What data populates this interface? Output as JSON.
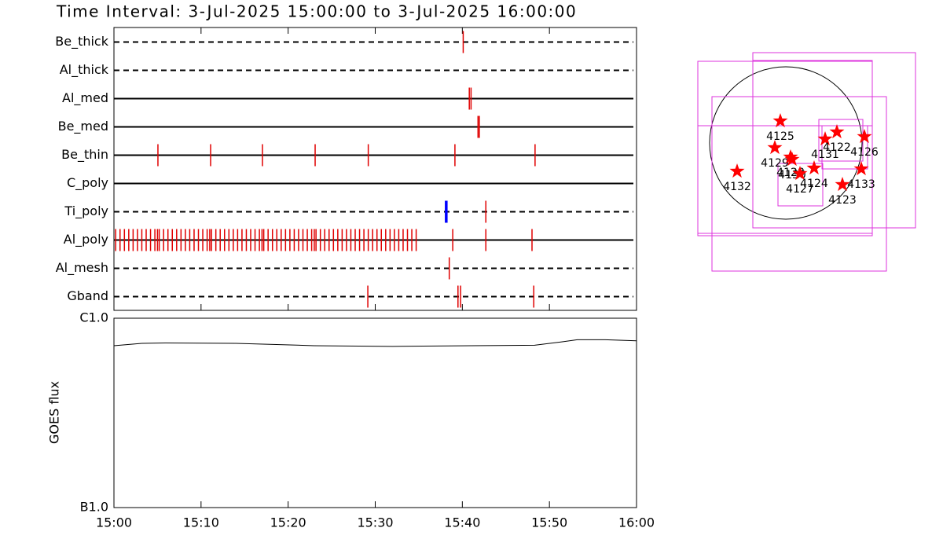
{
  "chart_data": [
    {
      "type": "events",
      "title": "Time Interval:  3-Jul-2025 15:00:00 to  3-Jul-2025 16:00:00",
      "xlim": [
        900,
        960
      ],
      "xticks": [
        {
          "value": 900,
          "label": "15:00"
        },
        {
          "value": 910,
          "label": "15:10"
        },
        {
          "value": 920,
          "label": "15:20"
        },
        {
          "value": 930,
          "label": "15:30"
        },
        {
          "value": 940,
          "label": "15:40"
        },
        {
          "value": 950,
          "label": "15:50"
        },
        {
          "value": 960,
          "label": "16:00"
        }
      ],
      "color": "#e00000",
      "channels": [
        {
          "name": "Be_thick",
          "line": "dashed",
          "times": [
            940.1
          ]
        },
        {
          "name": "Al_thick",
          "line": "dashed",
          "times": []
        },
        {
          "name": "Al_med",
          "line": "solid",
          "times": [
            940.8,
            941.0
          ]
        },
        {
          "name": "Be_med",
          "line": "solid",
          "times": [
            941.8,
            941.95
          ]
        },
        {
          "name": "Be_thin",
          "line": "solid",
          "times": [
            905.05,
            911.1,
            917.05,
            923.1,
            929.2,
            939.15,
            948.35
          ]
        },
        {
          "name": "C_poly",
          "line": "solid",
          "times": []
        },
        {
          "name": "Ti_poly",
          "line": "dashed",
          "times": [
            938.15,
            942.7
          ],
          "colors": [
            "#0000ff",
            "#e00000"
          ]
        },
        {
          "name": "Al_poly",
          "line": "solid",
          "times": [
            900.2,
            900.7,
            901.2,
            901.7,
            902.2,
            902.7,
            903.2,
            903.7,
            904.2,
            904.7,
            905.2,
            905.7,
            906.2,
            906.7,
            907.2,
            907.7,
            908.2,
            908.7,
            909.2,
            909.7,
            910.2,
            910.7,
            911.2,
            911.7,
            912.2,
            912.7,
            913.2,
            913.7,
            914.2,
            914.7,
            915.2,
            915.7,
            916.2,
            916.7,
            917.2,
            917.7,
            918.2,
            918.7,
            919.2,
            919.7,
            920.2,
            920.7,
            921.2,
            921.7,
            922.2,
            922.7,
            923.2,
            923.7,
            924.2,
            924.7,
            925.2,
            925.7,
            926.2,
            926.7,
            927.2,
            927.7,
            928.2,
            928.7,
            929.2,
            929.7,
            930.2,
            930.7,
            931.2,
            931.7,
            932.2,
            932.7,
            933.2,
            933.7,
            934.2,
            934.7,
            905.0,
            911.0,
            917.0,
            923.0,
            938.9,
            942.7,
            948.0
          ]
        },
        {
          "name": "Al_mesh",
          "line": "dashed",
          "times": [
            938.5
          ]
        },
        {
          "name": "Gband",
          "line": "dashed",
          "times": [
            929.15,
            939.5,
            939.8,
            948.2
          ]
        }
      ]
    },
    {
      "type": "line",
      "y_label": "GOES flux",
      "log_scale": true,
      "xlim": [
        900,
        960
      ],
      "ylim": [
        1e-06,
        1e-05
      ],
      "yticks": [
        {
          "value": 1e-06,
          "label": "B1.0"
        },
        {
          "value": 1e-05,
          "label": "C1.0"
        }
      ],
      "x": [
        900,
        903.2,
        905.9,
        914.0,
        923.0,
        932.0,
        941.0,
        948.3,
        951.4,
        953.2,
        956.4,
        960
      ],
      "values": [
        7.16e-06,
        7.37e-06,
        7.4e-06,
        7.37e-06,
        7.16e-06,
        7.1e-06,
        7.16e-06,
        7.2e-06,
        7.5e-06,
        7.7e-06,
        7.7e-06,
        7.6e-06
      ],
      "color": "#000000"
    },
    {
      "type": "map",
      "xlim": [
        -1200,
        1700
      ],
      "ylim": [
        -1700,
        1200
      ],
      "box_color": "#dd33dd",
      "star_color": "#ff0000",
      "boxes": [
        {
          "x": [
            -1120,
            1100
          ],
          "y": [
            1040,
            -1180
          ]
        },
        {
          "x": [
            -420,
            1650
          ],
          "y": [
            1150,
            -1080
          ]
        },
        {
          "x": [
            -940,
            1280
          ],
          "y": [
            590,
            -1630
          ]
        },
        {
          "x": [
            -420,
            1100
          ],
          "y": [
            1050,
            -1080
          ]
        },
        {
          "x": [
            -1120,
            1100
          ],
          "y": [
            220,
            -1150
          ]
        },
        {
          "x": [
            420,
            980
          ],
          "y": [
            300,
            -230
          ]
        },
        {
          "x": [
            460,
            1040
          ],
          "y": [
            220,
            -330
          ]
        },
        {
          "x": [
            -100,
            470
          ],
          "y": [
            -260,
            -800
          ]
        }
      ],
      "points": [
        {
          "label": "4125",
          "x": -70,
          "y": 280
        },
        {
          "label": "4129",
          "x": -140,
          "y": -60
        },
        {
          "label": "4128",
          "x": 60,
          "y": -180
        },
        {
          "label": "4130",
          "x": 80,
          "y": -210
        },
        {
          "label": "4127",
          "x": 180,
          "y": -390
        },
        {
          "label": "4124",
          "x": 360,
          "y": -320
        },
        {
          "label": "4131",
          "x": 500,
          "y": 50
        },
        {
          "label": "4122",
          "x": 650,
          "y": 140
        },
        {
          "label": "4126",
          "x": 1000,
          "y": 80
        },
        {
          "label": "4133",
          "x": 960,
          "y": -330
        },
        {
          "label": "4123",
          "x": 720,
          "y": -530
        },
        {
          "label": "4132",
          "x": -620,
          "y": -360
        }
      ]
    }
  ]
}
